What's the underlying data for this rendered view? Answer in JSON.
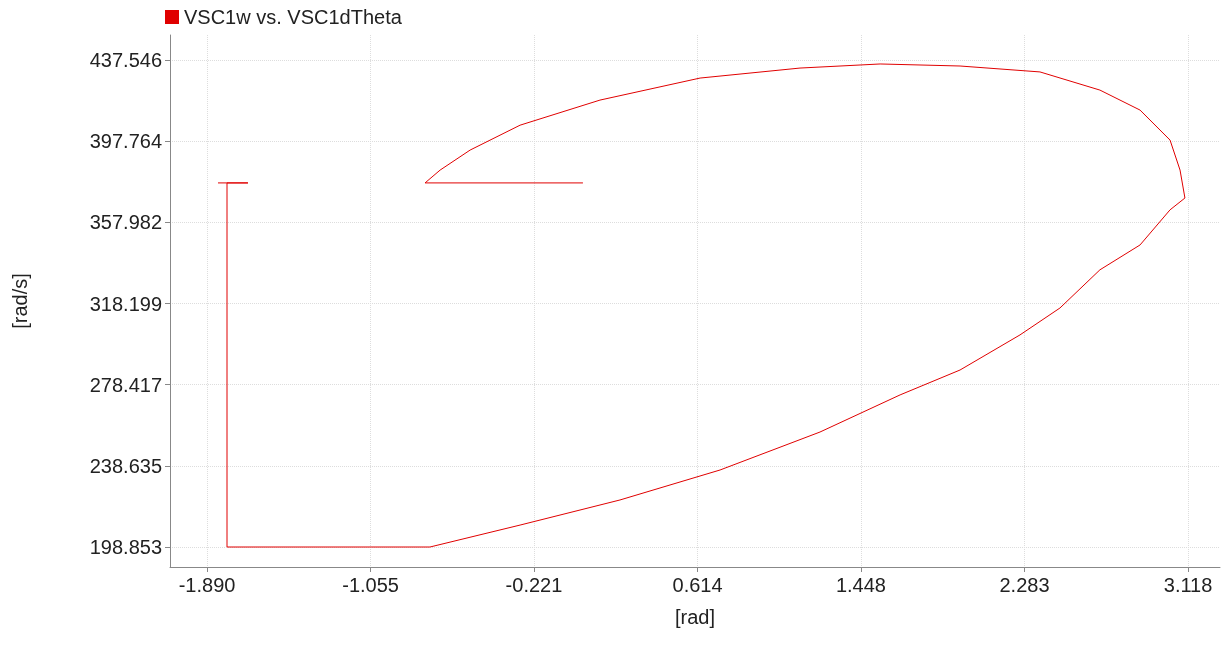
{
  "chart_data": {
    "type": "line",
    "xlabel": "[rad]",
    "ylabel": "[rad/s]",
    "xlim": [
      -2.079,
      3.281
    ],
    "ylim": [
      189.05,
      449.8
    ],
    "xticks": [
      {
        "value": -1.89,
        "label": "-1.890"
      },
      {
        "value": -1.055,
        "label": "-1.055"
      },
      {
        "value": -0.221,
        "label": "-0.221"
      },
      {
        "value": 0.614,
        "label": "0.614"
      },
      {
        "value": 1.448,
        "label": "1.448"
      },
      {
        "value": 2.283,
        "label": "2.283"
      },
      {
        "value": 3.118,
        "label": "3.118"
      }
    ],
    "yticks": [
      {
        "value": 198.853,
        "label": "198.853"
      },
      {
        "value": 238.635,
        "label": "238.635"
      },
      {
        "value": 278.417,
        "label": "278.417"
      },
      {
        "value": 318.199,
        "label": "318.199"
      },
      {
        "value": 357.982,
        "label": "357.982"
      },
      {
        "value": 397.764,
        "label": "397.764"
      },
      {
        "value": 437.546,
        "label": "437.546"
      }
    ],
    "grid": true,
    "legend": "top left",
    "marker": "none",
    "line_style": "solid",
    "series": [
      {
        "name": "VSC1w vs. VSC1dTheta",
        "color": "#e00000",
        "x": [
          -1.834,
          -1.681,
          -1.788,
          -1.788,
          -0.752,
          -0.292,
          0.218,
          0.729,
          1.239,
          1.648,
          1.954,
          2.26,
          2.464,
          2.668,
          2.873,
          3.026,
          3.102,
          3.077,
          3.026,
          2.873,
          2.668,
          2.362,
          1.954,
          1.546,
          1.137,
          0.627,
          0.116,
          -0.292,
          -0.547,
          -0.7,
          -0.777,
          0.029
        ],
        "values": [
          377.3,
          377.3,
          377.3,
          198.85,
          198.85,
          209.6,
          221.9,
          236.6,
          255.2,
          273.4,
          285.6,
          302.8,
          316.0,
          334.7,
          346.9,
          364.1,
          369.9,
          383.6,
          398.3,
          413.0,
          422.8,
          431.7,
          434.6,
          435.6,
          433.6,
          428.7,
          417.9,
          405.6,
          393.4,
          383.6,
          377.3,
          377.3
        ]
      }
    ]
  }
}
